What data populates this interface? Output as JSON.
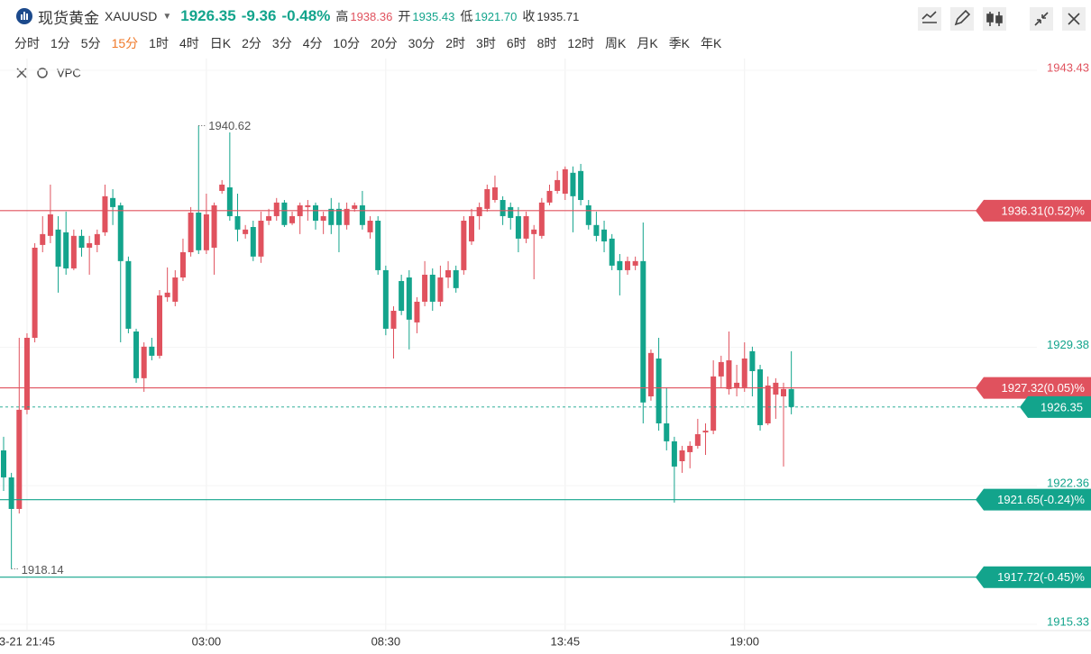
{
  "header": {
    "name": "现货黄金",
    "symbol": "XAUUSD",
    "price": "1926.35",
    "change": "-9.36",
    "change_pct": "-0.48%",
    "high_label": "高",
    "high": "1938.36",
    "open_label": "开",
    "open": "1935.43",
    "low_label": "低",
    "low": "1921.70",
    "close_label": "收",
    "close": "1935.71"
  },
  "intervals": [
    "分时",
    "1分",
    "5分",
    "15分",
    "1时",
    "4时",
    "日K",
    "2分",
    "3分",
    "4分",
    "10分",
    "20分",
    "30分",
    "2时",
    "3时",
    "6时",
    "8时",
    "12时",
    "周K",
    "月K",
    "季K",
    "年K"
  ],
  "selected_interval": "15分",
  "indicator": "VPC",
  "chart_data": {
    "type": "candlestick",
    "up_color": "#e0525e",
    "down_color": "#13a48c",
    "categories": [
      null,
      null,
      null,
      "3-21 21:45",
      null,
      null,
      null,
      null,
      null,
      null,
      null,
      null,
      null,
      null,
      null,
      null,
      null,
      null,
      null,
      null,
      null,
      null,
      null,
      null,
      null,
      null,
      "03:00",
      null,
      null,
      null,
      null,
      null,
      null,
      null,
      null,
      null,
      null,
      null,
      null,
      null,
      null,
      null,
      null,
      null,
      null,
      null,
      null,
      null,
      null,
      "08:30",
      null,
      null,
      null,
      null,
      null,
      null,
      null,
      null,
      null,
      null,
      null,
      null,
      null,
      null,
      null,
      null,
      null,
      null,
      null,
      null,
      null,
      null,
      "13:45",
      null,
      null,
      null,
      null,
      null,
      null,
      null,
      null,
      null,
      null,
      null,
      null,
      null,
      null,
      null,
      null,
      null,
      null,
      null,
      null,
      null,
      null,
      "19:00",
      null,
      null,
      null,
      null,
      null,
      null
    ],
    "ohlc": [
      [
        1924.15,
        1924.84,
        1922.09,
        1922.78
      ],
      [
        1922.78,
        1923.01,
        1918.14,
        1921.18
      ],
      [
        1921.18,
        1929.86,
        1920.95,
        1926.21
      ],
      [
        1926.21,
        1930.09,
        1925.98,
        1929.86
      ],
      [
        1929.86,
        1934.66,
        1929.63,
        1934.43
      ],
      [
        1934.57,
        1936.03,
        1934.2,
        1935.12
      ],
      [
        1935.03,
        1937.63,
        1934.66,
        1936.12
      ],
      [
        1935.35,
        1936.03,
        1932.15,
        1933.47
      ],
      [
        1935.21,
        1936.26,
        1933.06,
        1933.38
      ],
      [
        1933.38,
        1935.35,
        1933.29,
        1935.03
      ],
      [
        1935.03,
        1935.35,
        1933.98,
        1934.43
      ],
      [
        1934.43,
        1935.03,
        1933.06,
        1934.66
      ],
      [
        1934.57,
        1935.35,
        1934.2,
        1935.12
      ],
      [
        1935.21,
        1937.63,
        1935.03,
        1937.04
      ],
      [
        1936.95,
        1937.4,
        1935.58,
        1936.49
      ],
      [
        1936.58,
        1936.72,
        1929.63,
        1933.75
      ],
      [
        1933.75,
        1933.98,
        1930.09,
        1930.32
      ],
      [
        1930.18,
        1930.32,
        1927.58,
        1927.81
      ],
      [
        1927.81,
        1929.63,
        1927.12,
        1929.41
      ],
      [
        1929.41,
        1929.86,
        1928.72,
        1928.95
      ],
      [
        1928.95,
        1932.28,
        1928.81,
        1932.01
      ],
      [
        1931.92,
        1933.43,
        1931.69,
        1932.15
      ],
      [
        1931.69,
        1933.29,
        1931.46,
        1932.92
      ],
      [
        1932.92,
        1934.89,
        1932.74,
        1934.2
      ],
      [
        1934.2,
        1936.49,
        1933.98,
        1936.21
      ],
      [
        1936.21,
        1940.62,
        1934.11,
        1934.3
      ],
      [
        1934.3,
        1937.17,
        1934.11,
        1936.12
      ],
      [
        1934.43,
        1936.72,
        1933.06,
        1936.58
      ],
      [
        1937.31,
        1937.86,
        1937.17,
        1937.63
      ],
      [
        1937.49,
        1940.28,
        1935.8,
        1936.03
      ],
      [
        1936.03,
        1937.17,
        1934.75,
        1935.35
      ],
      [
        1935.12,
        1935.58,
        1934.89,
        1935.35
      ],
      [
        1935.48,
        1935.8,
        1933.75,
        1933.98
      ],
      [
        1933.98,
        1936.26,
        1933.66,
        1935.8
      ],
      [
        1935.8,
        1936.4,
        1935.58,
        1936.03
      ],
      [
        1936.03,
        1936.95,
        1935.8,
        1936.72
      ],
      [
        1936.72,
        1936.85,
        1935.48,
        1935.58
      ],
      [
        1935.67,
        1936.26,
        1935.58,
        1936.03
      ],
      [
        1936.03,
        1936.72,
        1935.12,
        1936.58
      ],
      [
        1936.49,
        1936.85,
        1935.8,
        1936.58
      ],
      [
        1936.58,
        1936.72,
        1935.35,
        1935.8
      ],
      [
        1935.8,
        1936.26,
        1935.12,
        1936.03
      ],
      [
        1936.4,
        1936.95,
        1935.12,
        1935.58
      ],
      [
        1936.4,
        1936.72,
        1934.2,
        1935.58
      ],
      [
        1935.58,
        1936.72,
        1935.35,
        1936.4
      ],
      [
        1936.4,
        1936.72,
        1936.26,
        1936.58
      ],
      [
        1936.58,
        1937.31,
        1935.35,
        1935.58
      ],
      [
        1935.21,
        1936.03,
        1934.89,
        1935.8
      ],
      [
        1935.8,
        1936.03,
        1933.06,
        1933.29
      ],
      [
        1933.29,
        1933.52,
        1929.99,
        1930.32
      ],
      [
        1930.32,
        1931.46,
        1928.81,
        1931.23
      ],
      [
        1932.74,
        1933.06,
        1931.01,
        1931.23
      ],
      [
        1932.92,
        1933.29,
        1929.27,
        1930.78
      ],
      [
        1930.64,
        1931.92,
        1930.09,
        1931.69
      ],
      [
        1931.69,
        1933.75,
        1931.46,
        1933.06
      ],
      [
        1933.06,
        1933.38,
        1931.23,
        1931.69
      ],
      [
        1931.69,
        1933.52,
        1931.46,
        1932.92
      ],
      [
        1932.92,
        1933.75,
        1932.38,
        1933.29
      ],
      [
        1933.29,
        1933.52,
        1932.15,
        1932.38
      ],
      [
        1933.29,
        1936.03,
        1933.06,
        1935.8
      ],
      [
        1934.75,
        1936.4,
        1934.57,
        1936.03
      ],
      [
        1936.03,
        1936.72,
        1935.35,
        1936.49
      ],
      [
        1936.4,
        1937.63,
        1936.26,
        1937.4
      ],
      [
        1936.85,
        1938.09,
        1936.72,
        1937.49
      ],
      [
        1936.85,
        1937.04,
        1935.58,
        1936.03
      ],
      [
        1936.49,
        1936.72,
        1935.35,
        1935.94
      ],
      [
        1936.03,
        1936.49,
        1934.2,
        1934.89
      ],
      [
        1934.89,
        1936.26,
        1934.66,
        1936.03
      ],
      [
        1935.12,
        1935.58,
        1932.83,
        1935.35
      ],
      [
        1935.03,
        1936.95,
        1934.89,
        1936.72
      ],
      [
        1936.72,
        1937.63,
        1936.58,
        1937.31
      ],
      [
        1937.31,
        1938.32,
        1937.17,
        1937.86
      ],
      [
        1937.17,
        1938.55,
        1936.85,
        1938.41
      ],
      [
        1938.23,
        1938.55,
        1935.21,
        1937.04
      ],
      [
        1938.32,
        1938.68,
        1936.58,
        1936.85
      ],
      [
        1936.58,
        1936.85,
        1935.35,
        1935.58
      ],
      [
        1935.58,
        1936.26,
        1934.75,
        1935.03
      ],
      [
        1935.35,
        1935.8,
        1934.2,
        1934.75
      ],
      [
        1934.89,
        1935.12,
        1933.29,
        1933.52
      ],
      [
        1933.75,
        1934.11,
        1932.01,
        1933.29
      ],
      [
        1933.29,
        1933.98,
        1933.06,
        1933.75
      ],
      [
        1933.52,
        1933.98,
        1933.29,
        1933.75
      ],
      [
        1933.75,
        1935.71,
        1925.52,
        1926.58
      ],
      [
        1926.89,
        1929.27,
        1926.67,
        1929.09
      ],
      [
        1928.81,
        1929.86,
        1925.15,
        1925.52
      ],
      [
        1925.52,
        1927.35,
        1924.15,
        1924.61
      ],
      [
        1924.61,
        1924.84,
        1921.5,
        1923.33
      ],
      [
        1923.6,
        1924.38,
        1923.01,
        1924.15
      ],
      [
        1924.06,
        1924.61,
        1923.24,
        1924.38
      ],
      [
        1924.38,
        1925.75,
        1924.24,
        1924.97
      ],
      [
        1925.06,
        1925.52,
        1923.92,
        1925.15
      ],
      [
        1925.15,
        1928.72,
        1924.97,
        1927.9
      ],
      [
        1927.9,
        1928.95,
        1927.35,
        1928.63
      ],
      [
        1927.26,
        1930.18,
        1926.98,
        1928.72
      ],
      [
        1927.35,
        1928.49,
        1926.89,
        1927.58
      ],
      [
        1927.35,
        1929.63,
        1927.12,
        1928.81
      ],
      [
        1929.18,
        1929.41,
        1926.89,
        1928.17
      ],
      [
        1928.26,
        1928.49,
        1925.15,
        1925.43
      ],
      [
        1925.52,
        1927.9,
        1925.43,
        1927.44
      ],
      [
        1926.98,
        1927.81,
        1925.75,
        1927.58
      ],
      [
        1926.89,
        1927.58,
        1923.33,
        1927.26
      ],
      [
        1927.26,
        1929.18,
        1925.98,
        1926.35
      ]
    ],
    "high": 1940.62,
    "low": 1918.14,
    "ylim": [
      1915.33,
      1943.43
    ],
    "yticks": [
      1943.43,
      1929.38,
      1922.36,
      1915.33
    ],
    "ytick_colors": [
      "#e0525e",
      "#13a48c",
      "#13a48c",
      "#13a48c"
    ],
    "levels": [
      {
        "value": 1936.31,
        "label": "1936.31(0.52)%",
        "color": "#e0525e"
      },
      {
        "value": 1927.32,
        "label": "1927.32(0.05)%",
        "color": "#e0525e"
      },
      {
        "value": 1921.65,
        "label": "1921.65(-0.24)%",
        "color": "#13a48c"
      },
      {
        "value": 1917.72,
        "label": "1917.72(-0.45)%",
        "color": "#13a48c"
      }
    ],
    "last_price": 1926.35,
    "last_color": "#13a48c"
  }
}
